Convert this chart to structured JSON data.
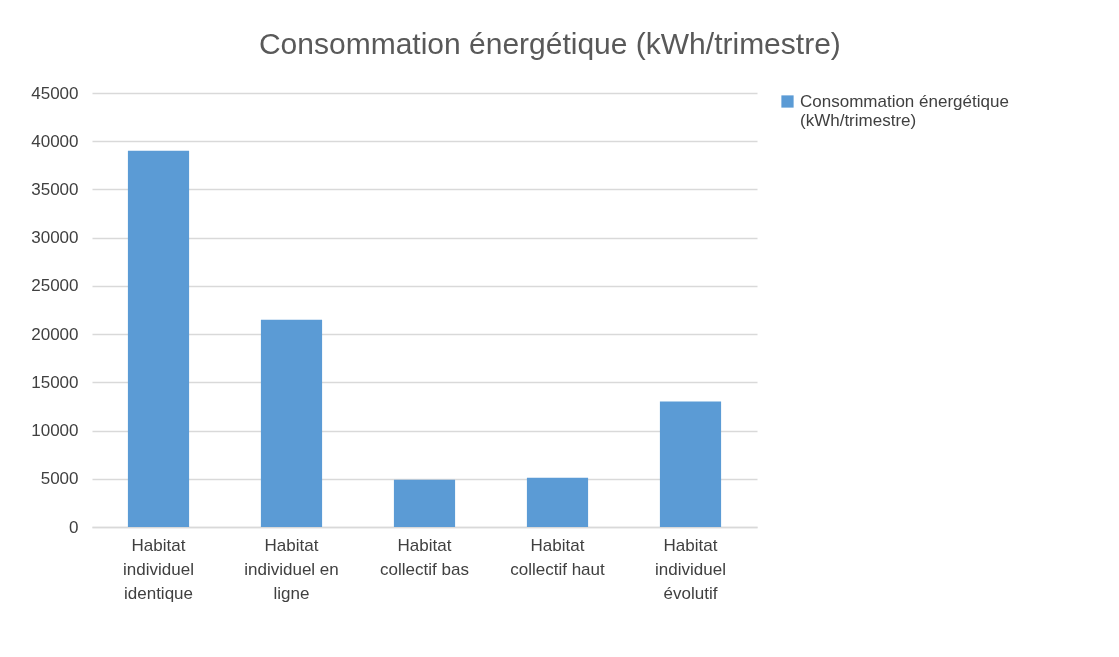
{
  "chart_data": {
    "type": "bar",
    "title": "Consommation énergétique (kWh/trimestre)",
    "categories": [
      "Habitat individuel identique",
      "Habitat individuel en ligne",
      "Habitat collectif bas",
      "Habitat collectif haut",
      "Habitat individuel évolutif"
    ],
    "series": [
      {
        "name": "Consommation énergétique (kWh/trimestre)",
        "color": "#5b9bd5",
        "values": [
          39000,
          21500,
          4900,
          5100,
          13000
        ]
      }
    ],
    "ylim": [
      0,
      45000
    ],
    "yticks": [
      0,
      5000,
      10000,
      15000,
      20000,
      25000,
      30000,
      35000,
      40000,
      45000
    ],
    "grid": "y",
    "legend": "right"
  }
}
